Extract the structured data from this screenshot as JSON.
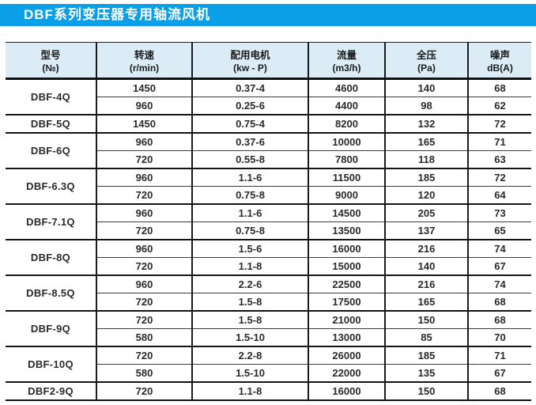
{
  "colors": {
    "title_bar_bg": "#09a0e8",
    "header_row_bg": "#dcecf7",
    "title_text": "#ffffff"
  },
  "title": {
    "bar_label": "DBF系列变压器专用轴流风机"
  },
  "table": {
    "headers": [
      {
        "line1": "型号",
        "line2": "(№)"
      },
      {
        "line1": "转速",
        "line2": "(r/min)"
      },
      {
        "line1": "配用电机",
        "line2": "(kw - P)"
      },
      {
        "line1": "流量",
        "line2": "(m3/h)"
      },
      {
        "line1": "全压",
        "line2": "(Pa)"
      },
      {
        "line1": "噪声",
        "line2": "dB(A)"
      }
    ],
    "column_meanings": [
      "model",
      "speed_r_min",
      "motor_kw_P",
      "flow_m3_h",
      "pressure_Pa",
      "noise_dBA"
    ],
    "groups": [
      {
        "model": "DBF-4Q",
        "rows": [
          [
            "1450",
            "0.37-4",
            "4600",
            "140",
            "68"
          ],
          [
            "960",
            "0.25-6",
            "4400",
            "98",
            "62"
          ]
        ]
      },
      {
        "model": "DBF-5Q",
        "rows": [
          [
            "1450",
            "0.75-4",
            "8200",
            "132",
            "72"
          ]
        ]
      },
      {
        "model": "DBF-6Q",
        "rows": [
          [
            "960",
            "0.37-6",
            "10000",
            "165",
            "71"
          ],
          [
            "720",
            "0.55-8",
            "7800",
            "118",
            "63"
          ]
        ]
      },
      {
        "model": "DBF-6.3Q",
        "rows": [
          [
            "960",
            "1.1-6",
            "11500",
            "185",
            "72"
          ],
          [
            "720",
            "0.75-8",
            "9000",
            "120",
            "64"
          ]
        ]
      },
      {
        "model": "DBF-7.1Q",
        "rows": [
          [
            "960",
            "1.1-6",
            "14500",
            "205",
            "73"
          ],
          [
            "720",
            "0.75-8",
            "13500",
            "137",
            "65"
          ]
        ]
      },
      {
        "model": "DBF-8Q",
        "rows": [
          [
            "960",
            "1.5-6",
            "16000",
            "216",
            "74"
          ],
          [
            "720",
            "1.1-8",
            "15000",
            "140",
            "67"
          ]
        ]
      },
      {
        "model": "DBF-8.5Q",
        "rows": [
          [
            "960",
            "2.2-6",
            "22500",
            "216",
            "74"
          ],
          [
            "720",
            "1.5-8",
            "17500",
            "165",
            "68"
          ]
        ]
      },
      {
        "model": "DBF-9Q",
        "rows": [
          [
            "720",
            "1.5-8",
            "21000",
            "150",
            "68"
          ],
          [
            "580",
            "1.5-10",
            "13000",
            "85",
            "70"
          ]
        ]
      },
      {
        "model": "DBF-10Q",
        "rows": [
          [
            "720",
            "2.2-8",
            "26000",
            "185",
            "71"
          ],
          [
            "580",
            "1.5-10",
            "22000",
            "135",
            "67"
          ]
        ]
      },
      {
        "model": "DBF2-9Q",
        "rows": [
          [
            "720",
            "1.1-8",
            "16000",
            "150",
            "68"
          ]
        ]
      }
    ]
  }
}
